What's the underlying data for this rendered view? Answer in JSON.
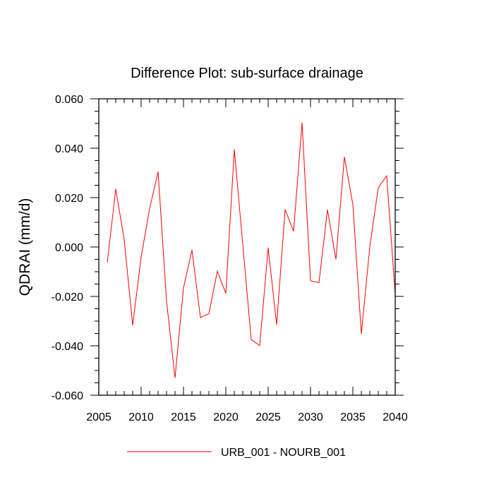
{
  "chart_data": {
    "type": "line",
    "title": "Difference Plot: sub-surface drainage",
    "xlabel": "",
    "ylabel": "QDRAI  (mm/d)",
    "xlim": [
      2005,
      2040
    ],
    "ylim": [
      -0.06,
      0.06
    ],
    "x_ticks": [
      2005,
      2010,
      2015,
      2020,
      2025,
      2030,
      2035,
      2040
    ],
    "x_tick_labels": [
      "2005",
      "2010",
      "2015",
      "2020",
      "2025",
      "2030",
      "2035",
      "2040"
    ],
    "y_ticks": [
      -0.06,
      -0.04,
      -0.02,
      0.0,
      0.02,
      0.04,
      0.06
    ],
    "y_tick_labels": [
      "-0.060",
      "-0.040",
      "-0.020",
      "0.000",
      "0.020",
      "0.040",
      "0.060"
    ],
    "grid": false,
    "legend_position": "bottom",
    "series": [
      {
        "name": "URB_001 - NOURB_001",
        "color": "#ff0000",
        "x": [
          2006,
          2007,
          2008,
          2009,
          2010,
          2011,
          2012,
          2013,
          2014,
          2015,
          2016,
          2017,
          2018,
          2019,
          2020,
          2021,
          2022,
          2023,
          2024,
          2025,
          2026,
          2027,
          2028,
          2029,
          2030,
          2031,
          2032,
          2033,
          2034,
          2035,
          2036,
          2037,
          2038,
          2039,
          2040
        ],
        "y": [
          -0.0063,
          0.0235,
          0.003,
          -0.0317,
          -0.004,
          0.0155,
          0.0305,
          -0.022,
          -0.053,
          -0.0165,
          -0.0012,
          -0.0285,
          -0.027,
          -0.0098,
          -0.0188,
          0.0395,
          0.001,
          -0.0375,
          -0.0399,
          -0.0003,
          -0.0315,
          0.0152,
          0.0064,
          0.0503,
          -0.0137,
          -0.0144,
          0.0151,
          -0.005,
          0.0365,
          0.0172,
          -0.0352,
          0.0,
          0.024,
          0.0288,
          -0.0195
        ]
      }
    ]
  }
}
